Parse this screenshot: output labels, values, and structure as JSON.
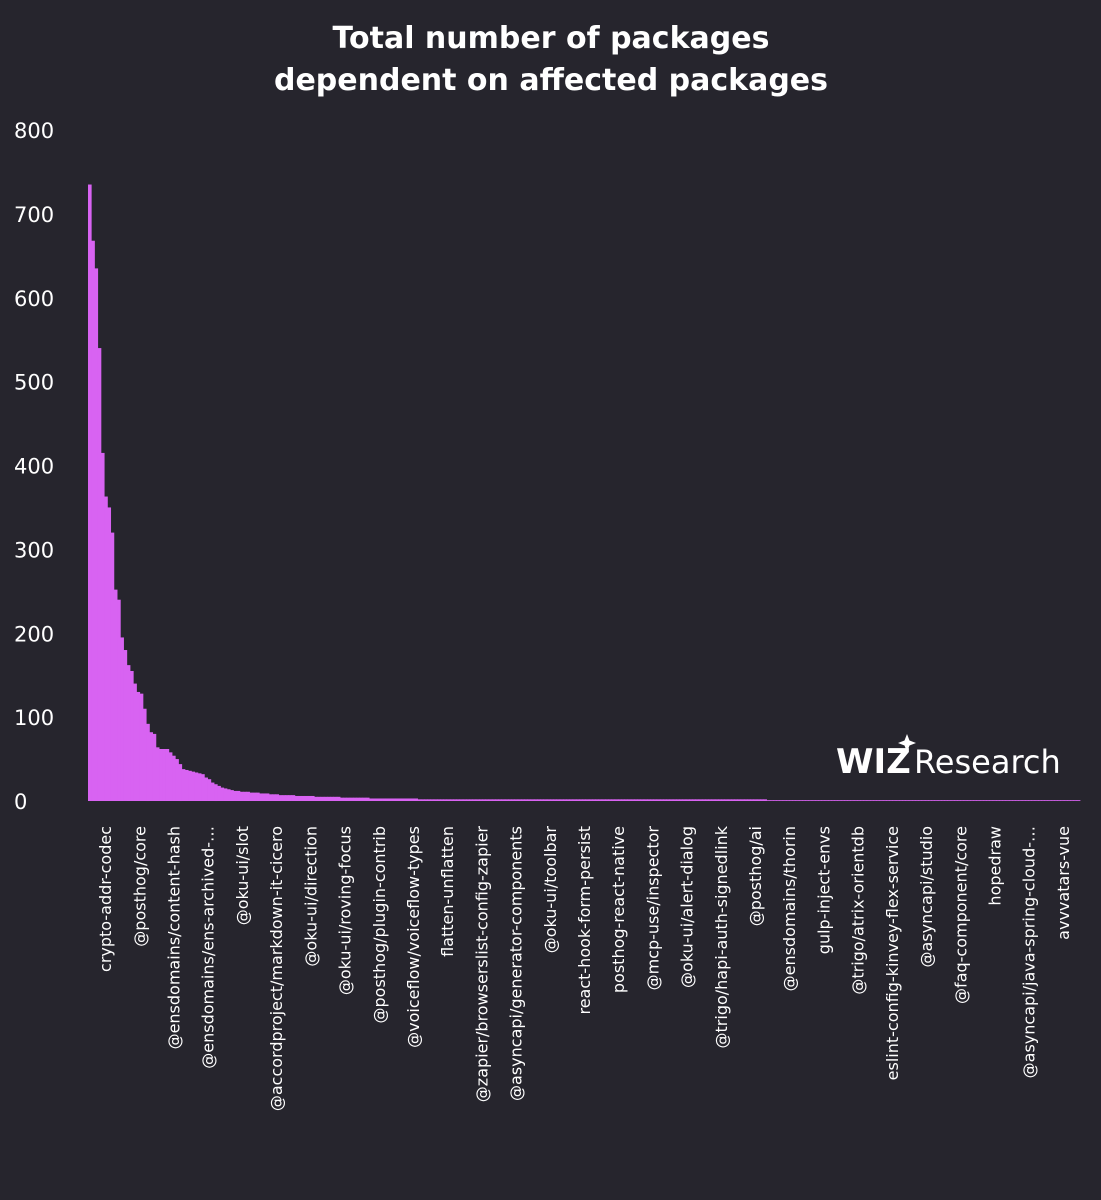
{
  "chart_data": {
    "type": "bar",
    "title": [
      "Total number of packages",
      "dependent on affected packages"
    ],
    "xlabel": "",
    "ylabel": "",
    "ylim": [
      0,
      800
    ],
    "yticks": [
      0,
      100,
      200,
      300,
      400,
      500,
      600,
      700,
      800
    ],
    "grid": false,
    "bar_color": "#d863f2",
    "background": "#26252d",
    "values": [
      735,
      668,
      635,
      540,
      415,
      363,
      350,
      320,
      252,
      240,
      195,
      180,
      162,
      155,
      140,
      130,
      128,
      110,
      92,
      82,
      80,
      64,
      62,
      62,
      62,
      58,
      54,
      50,
      44,
      38,
      37,
      36,
      35,
      34,
      33,
      32,
      28,
      26,
      22,
      20,
      18,
      16,
      15,
      14,
      13,
      12,
      12,
      11,
      11,
      11,
      10,
      10,
      10,
      9,
      9,
      9,
      8,
      8,
      8,
      7,
      7,
      7,
      7,
      7,
      6,
      6,
      6,
      6,
      6,
      6,
      5,
      5,
      5,
      5,
      5,
      5,
      5,
      5,
      4,
      4,
      4,
      4,
      4,
      4,
      4,
      4,
      4,
      3,
      3,
      3,
      3,
      3,
      3,
      3,
      3,
      3,
      3,
      3,
      3,
      3,
      3,
      3,
      2,
      2,
      2,
      2,
      2,
      2,
      2,
      2,
      2,
      2,
      2,
      2,
      2,
      2,
      2,
      2,
      2,
      2,
      2,
      2,
      2,
      2,
      2,
      2,
      2,
      2,
      2,
      2,
      2,
      2,
      2,
      2,
      2,
      2,
      2,
      2,
      2,
      2,
      2,
      2,
      2,
      2,
      2,
      2,
      2,
      2,
      2,
      2,
      2,
      2,
      2,
      2,
      2,
      2,
      2,
      2,
      2,
      2,
      2,
      2,
      2,
      2,
      2,
      2,
      2,
      2,
      2,
      2,
      2,
      2,
      2,
      2,
      2,
      2,
      2,
      2,
      2,
      2,
      2,
      2,
      2,
      2,
      2,
      2,
      2,
      2,
      2,
      2,
      2,
      2,
      2,
      2,
      2,
      2,
      2,
      2,
      2,
      2,
      2,
      2,
      2,
      2,
      2,
      2,
      2,
      2,
      2,
      2,
      1,
      1,
      1,
      1,
      1,
      1,
      1,
      1,
      1,
      1,
      1,
      1,
      1,
      1,
      1,
      1,
      1,
      1,
      1,
      1,
      1,
      1,
      1,
      1,
      1,
      1,
      1,
      1,
      1,
      1,
      1,
      1,
      1,
      1,
      1,
      1,
      1,
      1,
      1,
      1,
      1,
      1,
      1,
      1,
      1,
      1,
      1,
      1,
      1,
      1,
      1,
      1,
      1,
      1,
      1,
      1,
      1,
      1,
      1,
      1,
      1,
      1,
      1,
      1,
      1,
      1,
      1,
      1,
      1,
      1,
      1,
      1,
      1,
      1,
      1,
      1,
      1,
      1,
      1,
      1,
      1,
      1,
      1,
      1,
      1,
      1,
      1,
      1,
      1,
      1,
      1,
      1,
      1,
      1,
      1,
      1,
      1
    ],
    "tick_labels": [
      "crypto-addr-codec",
      "@posthog/core",
      "@ensdomains/content-hash",
      "@ensdomains/ens-archived-…",
      "@oku-ui/slot",
      "@accordproject/markdown-it-cicero",
      "@oku-ui/direction",
      "@oku-ui/roving-focus",
      "@posthog/plugin-contrib",
      "@voiceflow/voiceflow-types",
      "flatten-unflatten",
      "@zapier/browserslist-config-zapier",
      "@asyncapi/generator-components",
      "@oku-ui/toolbar",
      "react-hook-form-persist",
      "posthog-react-native",
      "@mcp-use/inspector",
      "@oku-ui/alert-dialog",
      "@trigo/hapi-auth-signedlink",
      "@posthog/ai",
      "@ensdomains/thorin",
      "gulp-inject-envs",
      "@trigo/atrix-orientdb",
      "eslint-config-kinvey-flex-service",
      "@asyncapi/studio",
      "@faq-component/core",
      "hopedraw",
      "@asyncapi/java-spring-cloud-…",
      "avvvatars-vue"
    ]
  },
  "branding": {
    "logo_bold": "WIZ",
    "logo_light": "Research"
  }
}
